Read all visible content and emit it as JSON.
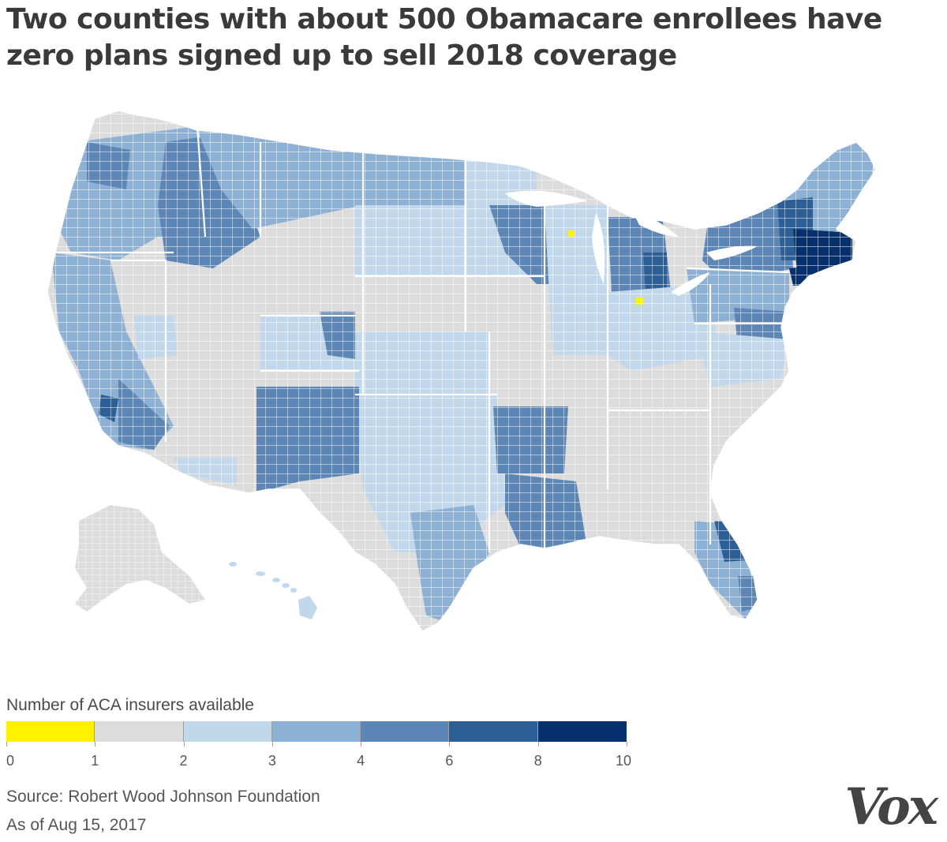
{
  "title": "Two counties with about 500 Obamacare enrollees have zero plans signed up to sell 2018 coverage",
  "legend": {
    "title": "Number of ACA insurers available",
    "bins": [
      {
        "from": 0,
        "to": 1,
        "color": "#fff200"
      },
      {
        "from": 1,
        "to": 2,
        "color": "#dcdcdc"
      },
      {
        "from": 2,
        "to": 3,
        "color": "#c1d8ec"
      },
      {
        "from": 3,
        "to": 4,
        "color": "#8cb1d4"
      },
      {
        "from": 4,
        "to": 6,
        "color": "#5b86b6"
      },
      {
        "from": 6,
        "to": 8,
        "color": "#2c5f96"
      },
      {
        "from": 8,
        "to": 10,
        "color": "#06306e"
      }
    ],
    "ticks": [
      "0",
      "1",
      "2",
      "3",
      "4",
      "6",
      "8",
      "10"
    ]
  },
  "source": "Source: Robert Wood Johnson Foundation",
  "as_of": "As of Aug 15, 2017",
  "logo": "Vox",
  "colors": {
    "zero": "#fff200",
    "one": "#dcdcdc",
    "two": "#c1d8ec",
    "three": "#8cb1d4",
    "four_five": "#5b86b6",
    "six_seven": "#2c5f96",
    "eight_plus": "#06306e",
    "border": "#ffffff"
  }
}
